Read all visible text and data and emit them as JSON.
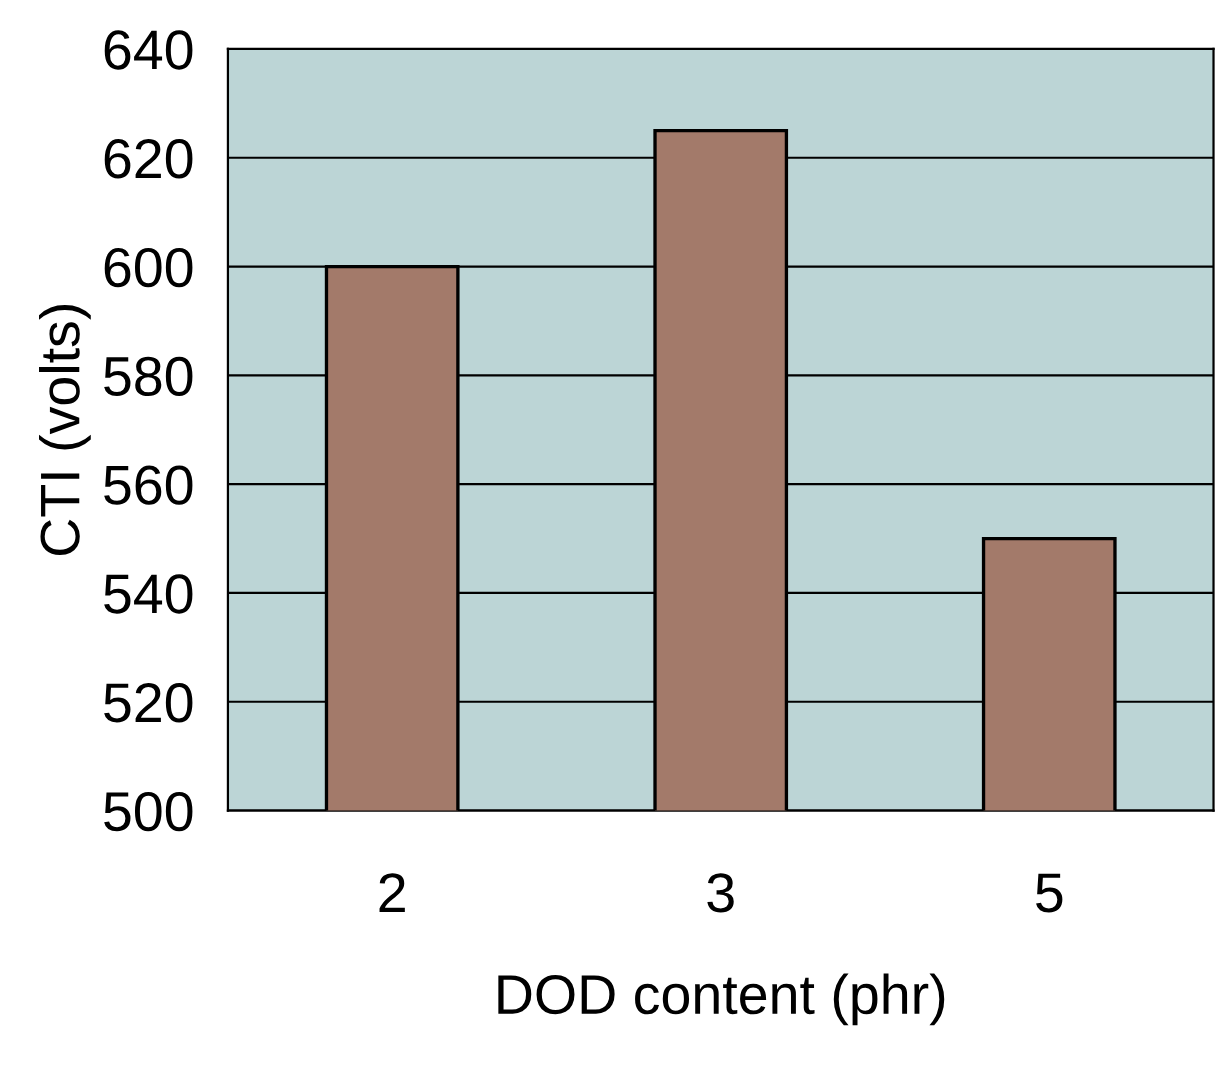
{
  "chart_data": {
    "type": "bar",
    "xlabel": "DOD content (phr)",
    "ylabel": "CTI (volts)",
    "categories": [
      "2",
      "3",
      "5"
    ],
    "values": [
      600,
      625,
      550
    ],
    "color": "#a37a6a",
    "ylim": [
      500,
      640
    ],
    "yticks": [
      500,
      520,
      540,
      560,
      580,
      600,
      620,
      640
    ],
    "grid": "y"
  }
}
